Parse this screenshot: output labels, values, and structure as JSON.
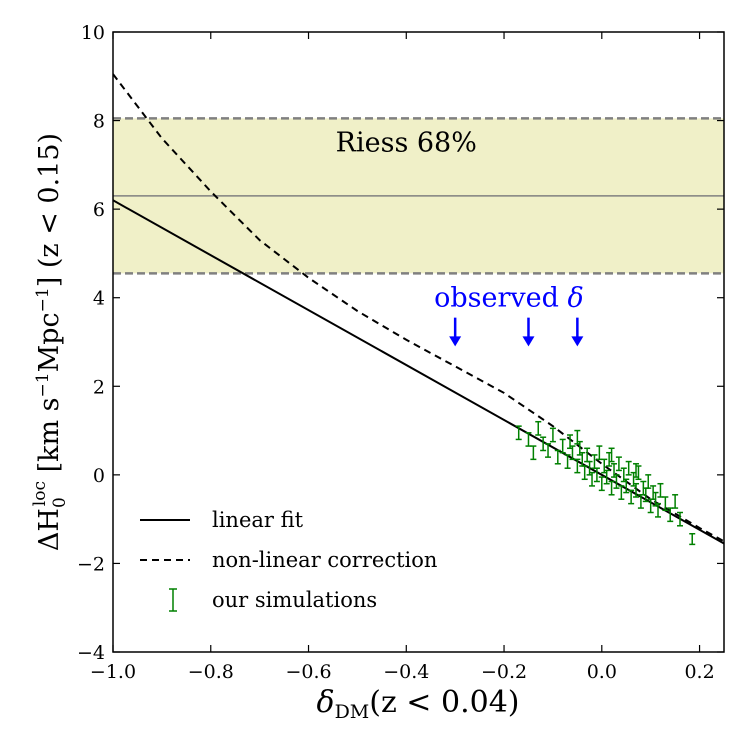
{
  "chart_data": {
    "type": "scatter",
    "xlabel": "δDM(z < 0.04)",
    "xlabel_main": "δ",
    "xlabel_sub": "DM",
    "xlabel_rest": "(z < 0.04)",
    "ylabel": "ΔH0loc [km s−1Mpc−1] (z < 0.15)",
    "ylabel_delta": "ΔH",
    "ylabel_sub": "0",
    "ylabel_sup": "loc",
    "ylabel_units_a": " [km s",
    "ylabel_units_sup": "−1",
    "ylabel_units_b": "Mpc",
    "ylabel_units_sup2": "−1",
    "ylabel_units_c": "] (z < 0.15)",
    "xlim": [
      -1.0,
      0.25
    ],
    "ylim": [
      -4,
      10
    ],
    "xticks": [
      {
        "value": -1.0,
        "label": "−1.0"
      },
      {
        "value": -0.8,
        "label": "−0.8"
      },
      {
        "value": -0.6,
        "label": "−0.6"
      },
      {
        "value": -0.4,
        "label": "−0.4"
      },
      {
        "value": -0.2,
        "label": "−0.2"
      },
      {
        "value": 0.0,
        "label": "0.0"
      },
      {
        "value": 0.2,
        "label": "0.2"
      }
    ],
    "yticks": [
      {
        "value": -4,
        "label": "−4"
      },
      {
        "value": -2,
        "label": "−2"
      },
      {
        "value": 0,
        "label": "0"
      },
      {
        "value": 2,
        "label": "2"
      },
      {
        "value": 4,
        "label": "4"
      },
      {
        "value": 6,
        "label": "6"
      },
      {
        "value": 8,
        "label": "8"
      },
      {
        "value": 10,
        "label": "10"
      }
    ],
    "riess_band": {
      "label": "Riess 68%",
      "center": 6.3,
      "low": 4.55,
      "high": 8.05,
      "fill_color": "#f0f0c8",
      "edge_color": "#808080"
    },
    "observed_delta": {
      "label": "observed δ",
      "label_text": "observed ",
      "label_symbol": "δ",
      "color": "#0000ff",
      "arrow_x": [
        -0.3,
        -0.15,
        -0.05
      ],
      "arrow_y_top": 3.55,
      "arrow_y_bottom": 2.9
    },
    "series": [
      {
        "name": "linear fit",
        "style": "solid",
        "color": "#000000",
        "x": [
          -1.0,
          0.25
        ],
        "y": [
          6.2,
          -1.55
        ]
      },
      {
        "name": "non-linear correction",
        "style": "dashed",
        "color": "#000000",
        "x": [
          -1.0,
          -0.9,
          -0.8,
          -0.7,
          -0.6,
          -0.5,
          -0.4,
          -0.3,
          -0.2,
          -0.1,
          0.0,
          0.1,
          0.2,
          0.25
        ],
        "y": [
          9.05,
          7.6,
          6.4,
          5.3,
          4.45,
          3.7,
          3.05,
          2.45,
          1.85,
          1.1,
          0.25,
          -0.55,
          -1.2,
          -1.5
        ]
      },
      {
        "name": "our simulations",
        "style": "errorbar",
        "color": "#008000",
        "points": [
          {
            "x": -0.17,
            "y": 0.95,
            "err": 0.15
          },
          {
            "x": -0.15,
            "y": 0.8,
            "err": 0.15
          },
          {
            "x": -0.13,
            "y": 1.05,
            "err": 0.15
          },
          {
            "x": -0.12,
            "y": 0.7,
            "err": 0.15
          },
          {
            "x": -0.11,
            "y": 0.55,
            "err": 0.15
          },
          {
            "x": -0.1,
            "y": 0.9,
            "err": 0.15
          },
          {
            "x": -0.09,
            "y": 0.4,
            "err": 0.15
          },
          {
            "x": -0.08,
            "y": 0.65,
            "err": 0.15
          },
          {
            "x": -0.07,
            "y": 0.3,
            "err": 0.15
          },
          {
            "x": -0.065,
            "y": 0.75,
            "err": 0.15
          },
          {
            "x": -0.06,
            "y": 0.5,
            "err": 0.15
          },
          {
            "x": -0.05,
            "y": 0.2,
            "err": 0.15
          },
          {
            "x": -0.045,
            "y": 0.6,
            "err": 0.15
          },
          {
            "x": -0.04,
            "y": 0.35,
            "err": 0.15
          },
          {
            "x": -0.035,
            "y": 0.05,
            "err": 0.15
          },
          {
            "x": -0.03,
            "y": 0.45,
            "err": 0.15
          },
          {
            "x": -0.025,
            "y": 0.15,
            "err": 0.15
          },
          {
            "x": -0.02,
            "y": -0.1,
            "err": 0.15
          },
          {
            "x": -0.015,
            "y": 0.3,
            "err": 0.15
          },
          {
            "x": -0.01,
            "y": 0.0,
            "err": 0.15
          },
          {
            "x": -0.005,
            "y": 0.5,
            "err": 0.15
          },
          {
            "x": 0.0,
            "y": -0.2,
            "err": 0.15
          },
          {
            "x": 0.005,
            "y": 0.2,
            "err": 0.15
          },
          {
            "x": 0.01,
            "y": -0.05,
            "err": 0.15
          },
          {
            "x": 0.015,
            "y": 0.35,
            "err": 0.15
          },
          {
            "x": 0.02,
            "y": -0.3,
            "err": 0.15
          },
          {
            "x": 0.025,
            "y": 0.1,
            "err": 0.15
          },
          {
            "x": 0.03,
            "y": -0.15,
            "err": 0.15
          },
          {
            "x": 0.035,
            "y": 0.25,
            "err": 0.15
          },
          {
            "x": 0.04,
            "y": -0.4,
            "err": 0.15
          },
          {
            "x": 0.045,
            "y": 0.0,
            "err": 0.15
          },
          {
            "x": 0.05,
            "y": -0.25,
            "err": 0.15
          },
          {
            "x": 0.055,
            "y": 0.15,
            "err": 0.15
          },
          {
            "x": 0.06,
            "y": -0.5,
            "err": 0.15
          },
          {
            "x": 0.065,
            "y": -0.1,
            "err": 0.15
          },
          {
            "x": 0.07,
            "y": -0.35,
            "err": 0.15
          },
          {
            "x": 0.075,
            "y": 0.05,
            "err": 0.15
          },
          {
            "x": 0.08,
            "y": -0.6,
            "err": 0.15
          },
          {
            "x": 0.085,
            "y": -0.3,
            "err": 0.15
          },
          {
            "x": 0.09,
            "y": -0.45,
            "err": 0.15
          },
          {
            "x": 0.095,
            "y": -0.15,
            "err": 0.15
          },
          {
            "x": 0.1,
            "y": -0.7,
            "err": 0.15
          },
          {
            "x": 0.105,
            "y": -0.4,
            "err": 0.15
          },
          {
            "x": 0.11,
            "y": -0.55,
            "err": 0.15
          },
          {
            "x": 0.115,
            "y": -0.8,
            "err": 0.15
          },
          {
            "x": 0.12,
            "y": -0.35,
            "err": 0.15
          },
          {
            "x": 0.13,
            "y": -0.65,
            "err": 0.15
          },
          {
            "x": 0.14,
            "y": -0.9,
            "err": 0.15
          },
          {
            "x": 0.15,
            "y": -0.6,
            "err": 0.15
          },
          {
            "x": 0.16,
            "y": -1.0,
            "err": 0.15
          },
          {
            "x": -0.14,
            "y": 0.5,
            "err": 0.15
          },
          {
            "x": -0.05,
            "y": 0.85,
            "err": 0.15
          },
          {
            "x": 0.02,
            "y": 0.45,
            "err": 0.15
          },
          {
            "x": 0.07,
            "y": 0.1,
            "err": 0.15
          },
          {
            "x": 0.185,
            "y": -1.45,
            "err": 0.12
          }
        ]
      }
    ],
    "legend": [
      {
        "label": "linear fit",
        "style": "solid"
      },
      {
        "label": "non-linear correction",
        "style": "dashed"
      },
      {
        "label": "our simulations",
        "style": "errorbar"
      }
    ],
    "legend_position": "lower-left"
  }
}
